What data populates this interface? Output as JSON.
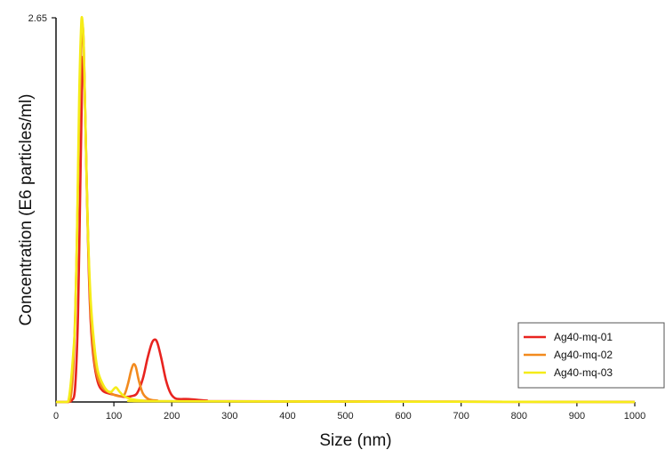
{
  "chart_data": {
    "type": "line",
    "title": "",
    "xlabel": "Size (nm)",
    "ylabel": "Concentration (E6 particles/ml)",
    "xlim": [
      0,
      1000
    ],
    "ylim": [
      0,
      2.65
    ],
    "x_ticks": [
      "0",
      "100",
      "200",
      "300",
      "400",
      "500",
      "600",
      "700",
      "800",
      "900",
      "1000"
    ],
    "y_tick_label": "2.65",
    "grid": false,
    "legend_position": "bottom-right",
    "series": [
      {
        "name": "Ag40-mq-01",
        "color": "#e8231f",
        "points": [
          [
            0,
            0
          ],
          [
            20,
            0
          ],
          [
            27,
            0.01
          ],
          [
            33,
            0.1
          ],
          [
            38,
            0.6
          ],
          [
            42,
            1.5
          ],
          [
            45,
            2.2
          ],
          [
            47,
            2.38
          ],
          [
            49,
            2.25
          ],
          [
            52,
            1.7
          ],
          [
            56,
            1.0
          ],
          [
            60,
            0.55
          ],
          [
            65,
            0.3
          ],
          [
            72,
            0.14
          ],
          [
            80,
            0.08
          ],
          [
            90,
            0.06
          ],
          [
            100,
            0.05
          ],
          [
            110,
            0.04
          ],
          [
            120,
            0.035
          ],
          [
            130,
            0.04
          ],
          [
            140,
            0.06
          ],
          [
            150,
            0.16
          ],
          [
            158,
            0.3
          ],
          [
            165,
            0.4
          ],
          [
            170,
            0.43
          ],
          [
            175,
            0.41
          ],
          [
            182,
            0.3
          ],
          [
            190,
            0.15
          ],
          [
            198,
            0.06
          ],
          [
            206,
            0.025
          ],
          [
            215,
            0.02
          ],
          [
            230,
            0.02
          ],
          [
            260,
            0.01
          ],
          [
            300,
            0.005
          ],
          [
            1000,
            0
          ]
        ]
      },
      {
        "name": "Ag40-mq-02",
        "color": "#f28a1e",
        "points": [
          [
            0,
            0
          ],
          [
            20,
            0
          ],
          [
            25,
            0.02
          ],
          [
            30,
            0.25
          ],
          [
            35,
            0.9
          ],
          [
            40,
            1.9
          ],
          [
            44,
            2.5
          ],
          [
            46,
            2.6
          ],
          [
            48,
            2.45
          ],
          [
            51,
            1.9
          ],
          [
            55,
            1.2
          ],
          [
            60,
            0.6
          ],
          [
            66,
            0.3
          ],
          [
            72,
            0.17
          ],
          [
            80,
            0.1
          ],
          [
            90,
            0.07
          ],
          [
            100,
            0.05
          ],
          [
            110,
            0.04
          ],
          [
            118,
            0.05
          ],
          [
            124,
            0.12
          ],
          [
            130,
            0.22
          ],
          [
            134,
            0.26
          ],
          [
            138,
            0.24
          ],
          [
            143,
            0.15
          ],
          [
            150,
            0.06
          ],
          [
            160,
            0.02
          ],
          [
            175,
            0.01
          ],
          [
            200,
            0.005
          ],
          [
            1000,
            0
          ]
        ]
      },
      {
        "name": "Ag40-mq-03",
        "color": "#f5ec18",
        "points": [
          [
            0,
            0
          ],
          [
            18,
            0
          ],
          [
            22,
            0.02
          ],
          [
            26,
            0.15
          ],
          [
            30,
            0.35
          ],
          [
            33,
            0.55
          ],
          [
            36,
            1.1
          ],
          [
            40,
            2.1
          ],
          [
            43,
            2.55
          ],
          [
            45,
            2.65
          ],
          [
            48,
            2.45
          ],
          [
            51,
            1.9
          ],
          [
            55,
            1.2
          ],
          [
            60,
            0.7
          ],
          [
            66,
            0.4
          ],
          [
            72,
            0.22
          ],
          [
            80,
            0.13
          ],
          [
            88,
            0.08
          ],
          [
            95,
            0.07
          ],
          [
            100,
            0.09
          ],
          [
            104,
            0.1
          ],
          [
            110,
            0.07
          ],
          [
            118,
            0.04
          ],
          [
            130,
            0.02
          ],
          [
            150,
            0.01
          ],
          [
            200,
            0.005
          ],
          [
            1000,
            0
          ]
        ]
      }
    ]
  }
}
